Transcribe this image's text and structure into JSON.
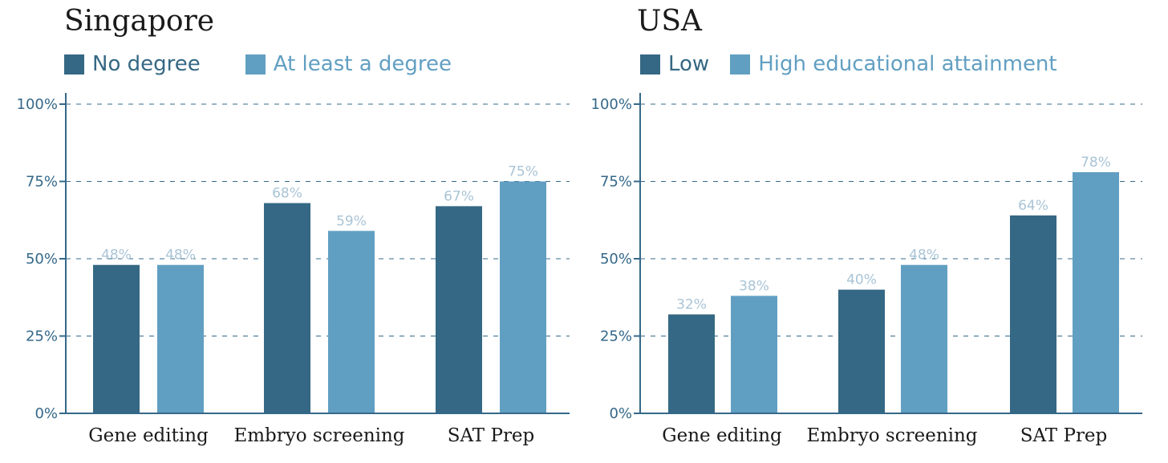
{
  "chart_data": [
    {
      "type": "bar",
      "title": "Singapore",
      "categories": [
        "Gene editing",
        "Embryo screening",
        "SAT Prep"
      ],
      "series": [
        {
          "name": "No degree",
          "color": "#356884",
          "values": [
            48,
            68,
            67
          ],
          "labels": [
            "48%",
            "68%",
            "67%"
          ]
        },
        {
          "name": "At least a degree",
          "color": "#619fc2",
          "values": [
            48,
            59,
            75
          ],
          "labels": [
            "48%",
            "59%",
            "75%"
          ]
        }
      ],
      "ylim": [
        0,
        100
      ],
      "yticks": [
        0,
        25,
        50,
        75,
        100
      ],
      "ytick_labels": [
        "0%",
        "25%",
        "50%",
        "75%",
        "100%"
      ],
      "grid": "dashed horizontal",
      "legend": "top-left"
    },
    {
      "type": "bar",
      "title": "USA",
      "categories": [
        "Gene editing",
        "Embryo screening",
        "SAT Prep"
      ],
      "series": [
        {
          "name": "Low",
          "color": "#356884",
          "values": [
            32,
            40,
            64
          ],
          "labels": [
            "32%",
            "40%",
            "64%"
          ]
        },
        {
          "name": "High educational attainment",
          "color": "#619fc2",
          "values": [
            38,
            48,
            78
          ],
          "labels": [
            "38%",
            "48%",
            "78%"
          ]
        }
      ],
      "ylim": [
        0,
        100
      ],
      "yticks": [
        0,
        25,
        50,
        75,
        100
      ],
      "ytick_labels": [
        "0%",
        "25%",
        "50%",
        "75%",
        "100%"
      ],
      "grid": "dashed horizontal",
      "legend": "top-left"
    }
  ]
}
